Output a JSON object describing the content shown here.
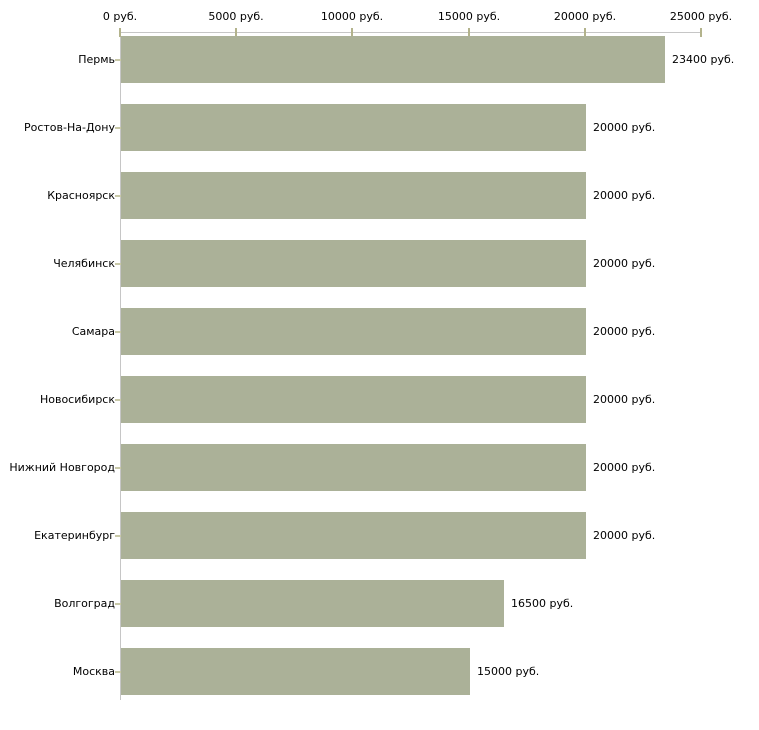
{
  "chart_data": {
    "type": "bar",
    "orientation": "horizontal",
    "title": "",
    "xlabel": "",
    "ylabel": "",
    "categories": [
      "Пермь",
      "Ростов-На-Дону",
      "Красноярск",
      "Челябинск",
      "Самара",
      "Новосибирск",
      "Нижний Новгород",
      "Екатеринбург",
      "Волгоград",
      "Москва"
    ],
    "values": [
      23400,
      20000,
      20000,
      20000,
      20000,
      20000,
      20000,
      20000,
      16500,
      15000
    ],
    "value_labels": [
      "23400 руб.",
      "20000 руб.",
      "20000 руб.",
      "20000 руб.",
      "20000 руб.",
      "20000 руб.",
      "20000 руб.",
      "20000 руб.",
      "16500 руб.",
      "15000 руб."
    ],
    "x_ticks": [
      0,
      5000,
      10000,
      15000,
      20000,
      25000
    ],
    "x_tick_labels": [
      "0 руб.",
      "5000 руб.",
      "10000 руб.",
      "15000 руб.",
      "20000 руб.",
      "25000 руб."
    ],
    "xlim": [
      0,
      25000
    ],
    "unit": "руб.",
    "grid": false,
    "legend_position": "none"
  },
  "colors": {
    "bar": "#abb198",
    "axis_line": "#c6c6c6",
    "x_tick": "#b3b38c",
    "cat_tick": "#c9c9a8",
    "text": "#000000",
    "background": "#ffffff"
  }
}
